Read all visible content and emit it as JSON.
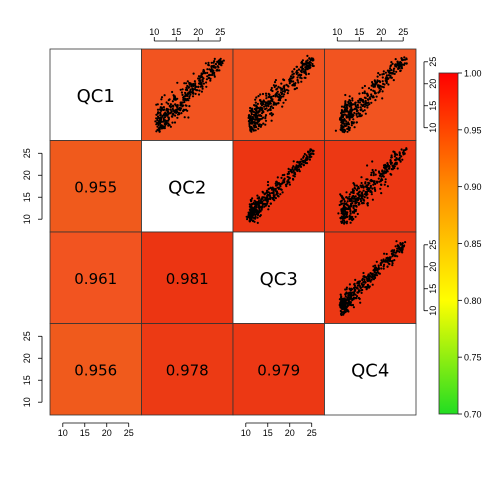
{
  "chart_data": {
    "type": "heatmap",
    "title": "",
    "samples": [
      "QC1",
      "QC2",
      "QC3",
      "QC4"
    ],
    "correlations": [
      [
        null,
        null,
        null,
        null
      ],
      [
        0.955,
        null,
        null,
        null
      ],
      [
        0.961,
        0.981,
        null,
        null
      ],
      [
        0.956,
        0.978,
        0.979,
        null
      ]
    ],
    "correlation_labels": [
      [
        "",
        "",
        "",
        ""
      ],
      [
        "0.955",
        "",
        "",
        ""
      ],
      [
        "0.961",
        "0.981",
        "",
        ""
      ],
      [
        "0.956",
        "0.978",
        "0.979",
        ""
      ]
    ],
    "scatter_axis": {
      "range": [
        8,
        27
      ],
      "ticks": [
        10,
        15,
        20,
        25
      ],
      "tick_labels": [
        "10",
        "15",
        "20",
        "25"
      ]
    },
    "colorbar": {
      "range": [
        0.7,
        1.0
      ],
      "ticks": [
        0.7,
        0.75,
        0.8,
        0.85,
        0.9,
        0.95,
        1.0
      ],
      "tick_labels": [
        "0.70",
        "0.75",
        "0.80",
        "0.85",
        "0.90",
        "0.95",
        "1.00"
      ],
      "colors": [
        "#22dd22",
        "#ffff00",
        "#ff8c00",
        "#ff0000"
      ]
    },
    "upper_panels": "scatter",
    "lower_panels": "correlation",
    "diagonal": "label",
    "cell_colors": {
      "1-0": "#f05a1c",
      "2-0": "#f25420",
      "2-1": "#ec3512",
      "3-0": "#f05a1c",
      "3-1": "#ec3a14",
      "3-2": "#ec3814",
      "0-1": "#f25420",
      "0-2": "#f25420",
      "0-3": "#f25420",
      "1-2": "#ec3512",
      "1-3": "#ec3814",
      "2-3": "#ec3814"
    }
  }
}
